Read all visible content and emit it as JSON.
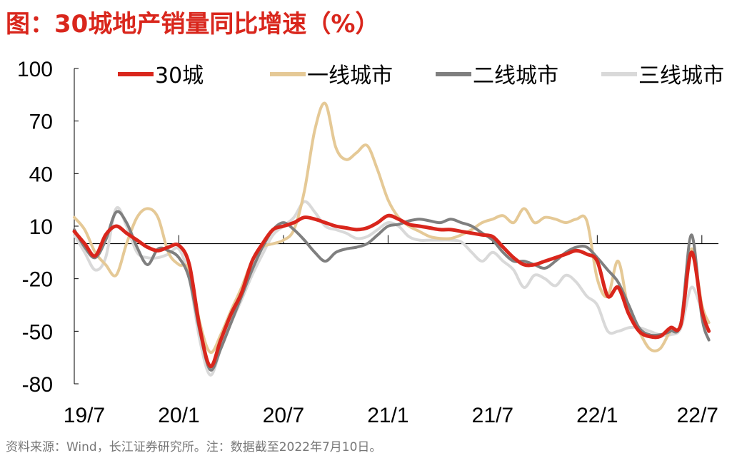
{
  "title": "图：30城地产销量同比增速（%）",
  "source": "资料来源：Wind，长江证券研究所。注：数据截至2022年7月10日。",
  "chart_data": {
    "type": "line",
    "title": "图：30城地产销量同比增速（%）",
    "xlabel": "",
    "ylabel": "",
    "ylim": [
      -80,
      100
    ],
    "yticks": [
      100,
      70,
      40,
      10,
      -20,
      -50,
      -80
    ],
    "x_tick_labels": [
      "19/7",
      "20/1",
      "20/7",
      "21/1",
      "21/7",
      "22/1",
      "22/7"
    ],
    "x_tick_positions": [
      0,
      6,
      12,
      18,
      24,
      30,
      36
    ],
    "x_range": [
      0,
      36.5
    ],
    "legend": "top",
    "series": [
      {
        "name": "30城",
        "color": "#d9261c",
        "x": [
          0,
          0.6,
          1.2,
          1.8,
          2.4,
          3.0,
          3.6,
          4.2,
          4.8,
          5.4,
          6.0,
          6.6,
          7.2,
          7.8,
          8.4,
          9.0,
          9.6,
          10.2,
          10.8,
          11.4,
          12.0,
          12.6,
          13.2,
          13.8,
          14.4,
          15.0,
          15.6,
          16.2,
          16.8,
          17.4,
          18.0,
          18.6,
          19.2,
          19.8,
          20.4,
          21.0,
          21.6,
          22.2,
          22.8,
          23.4,
          24.0,
          24.6,
          25.2,
          25.8,
          26.4,
          27.0,
          27.6,
          28.2,
          28.8,
          29.4,
          30.0,
          30.6,
          31.2,
          31.8,
          32.4,
          33.0,
          33.6,
          34.2,
          34.8,
          35.4,
          36.0,
          36.4
        ],
        "values": [
          7,
          0,
          -7,
          5,
          10,
          6,
          2,
          -2,
          -4,
          -2,
          -1,
          -12,
          -48,
          -70,
          -55,
          -40,
          -28,
          -10,
          0,
          8,
          10,
          12,
          15,
          14,
          12,
          10,
          9,
          8,
          9,
          12,
          16,
          14,
          11,
          10,
          9,
          8,
          8,
          7,
          6,
          5,
          4,
          -2,
          -8,
          -12,
          -12,
          -10,
          -8,
          -6,
          -4,
          -6,
          -10,
          -30,
          -25,
          -40,
          -50,
          -53,
          -53,
          -48,
          -46,
          -5,
          -38,
          -50
        ]
      },
      {
        "name": "一线城市",
        "color": "#e5c996",
        "x": [
          0,
          0.6,
          1.2,
          1.8,
          2.4,
          3.0,
          3.6,
          4.2,
          4.8,
          5.4,
          6.0,
          6.6,
          7.2,
          7.8,
          8.4,
          9.0,
          9.6,
          10.2,
          10.8,
          11.4,
          12.0,
          12.6,
          13.2,
          13.8,
          14.4,
          15.0,
          15.6,
          16.2,
          16.8,
          17.4,
          18.0,
          18.6,
          19.2,
          19.8,
          20.4,
          21.0,
          21.6,
          22.2,
          22.8,
          23.4,
          24.0,
          24.6,
          25.2,
          25.8,
          26.4,
          27.0,
          27.6,
          28.2,
          28.8,
          29.4,
          30.0,
          30.6,
          31.2,
          31.8,
          32.4,
          33.0,
          33.6,
          34.2,
          34.8,
          35.4,
          36.0,
          36.4
        ],
        "values": [
          15,
          8,
          -5,
          -12,
          -18,
          0,
          15,
          20,
          15,
          -5,
          -12,
          -15,
          -45,
          -62,
          -52,
          -38,
          -25,
          -10,
          -2,
          0,
          2,
          8,
          30,
          65,
          80,
          55,
          48,
          52,
          56,
          42,
          25,
          15,
          10,
          7,
          4,
          3,
          3,
          5,
          8,
          12,
          14,
          16,
          12,
          20,
          12,
          15,
          14,
          12,
          14,
          13,
          -20,
          -30,
          -10,
          -38,
          -50,
          -60,
          -60,
          -50,
          -45,
          -3,
          -35,
          -45
        ]
      },
      {
        "name": "二线城市",
        "color": "#7f7f7f",
        "x": [
          0,
          0.6,
          1.2,
          1.8,
          2.4,
          3.0,
          3.6,
          4.2,
          4.8,
          5.4,
          6.0,
          6.6,
          7.2,
          7.8,
          8.4,
          9.0,
          9.6,
          10.2,
          10.8,
          11.4,
          12.0,
          12.6,
          13.2,
          13.8,
          14.4,
          15.0,
          15.6,
          16.2,
          16.8,
          17.4,
          18.0,
          18.6,
          19.2,
          19.8,
          20.4,
          21.0,
          21.6,
          22.2,
          22.8,
          23.4,
          24.0,
          24.6,
          25.2,
          25.8,
          26.4,
          27.0,
          27.6,
          28.2,
          28.8,
          29.4,
          30.0,
          30.6,
          31.2,
          31.8,
          32.4,
          33.0,
          33.6,
          34.2,
          34.8,
          35.4,
          36.0,
          36.4
        ],
        "values": [
          8,
          -2,
          -8,
          2,
          18,
          12,
          -2,
          -12,
          -3,
          -4,
          -8,
          -20,
          -50,
          -72,
          -60,
          -45,
          -30,
          -15,
          -2,
          8,
          12,
          8,
          2,
          -5,
          -10,
          -5,
          -3,
          -2,
          0,
          5,
          10,
          11,
          13,
          14,
          13,
          12,
          14,
          12,
          10,
          6,
          2,
          -5,
          -10,
          -10,
          -12,
          -14,
          -10,
          -5,
          -2,
          -2,
          -8,
          -15,
          -22,
          -35,
          -48,
          -52,
          -52,
          -50,
          -45,
          5,
          -42,
          -55
        ]
      },
      {
        "name": "三线城市",
        "color": "#d9d9d9",
        "x": [
          0,
          0.6,
          1.2,
          1.8,
          2.4,
          3.0,
          3.6,
          4.2,
          4.8,
          5.4,
          6.0,
          6.6,
          7.2,
          7.8,
          8.4,
          9.0,
          9.6,
          10.2,
          10.8,
          11.4,
          12.0,
          12.6,
          13.2,
          13.8,
          14.4,
          15.0,
          15.6,
          16.2,
          16.8,
          17.4,
          18.0,
          18.6,
          19.2,
          19.8,
          20.4,
          21.0,
          21.6,
          22.2,
          22.8,
          23.4,
          24.0,
          24.6,
          25.2,
          25.8,
          26.4,
          27.0,
          27.6,
          28.2,
          28.8,
          29.4,
          30.0,
          30.6,
          31.2,
          31.8,
          32.4,
          33.0,
          33.6,
          34.2,
          34.8,
          35.4,
          36.0,
          36.4
        ],
        "values": [
          5,
          -5,
          -15,
          -8,
          20,
          10,
          -5,
          -8,
          -8,
          -6,
          -3,
          -20,
          -55,
          -75,
          -60,
          -45,
          -32,
          -18,
          -6,
          5,
          10,
          15,
          24,
          18,
          10,
          8,
          6,
          3,
          4,
          8,
          12,
          10,
          4,
          2,
          2,
          2,
          2,
          1,
          -5,
          -10,
          -5,
          -10,
          -15,
          -25,
          -18,
          -20,
          -24,
          -18,
          -22,
          -30,
          -35,
          -50,
          -50,
          -48,
          -48,
          -50,
          -52,
          -52,
          -48,
          -25,
          -38,
          -45
        ]
      }
    ]
  }
}
